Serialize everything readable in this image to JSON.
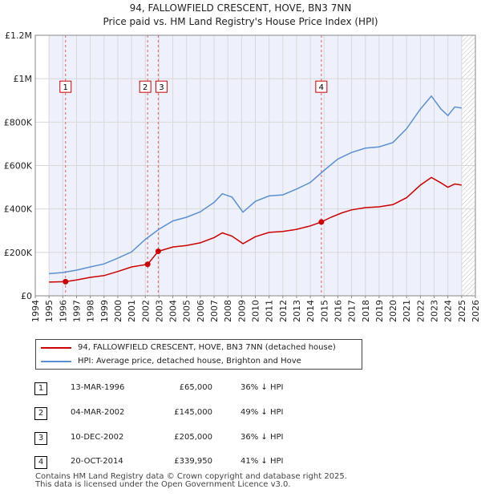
{
  "chart_data": {
    "type": "line",
    "title": "94, FALLOWFIELD CRESCENT, HOVE, BN3 7NN",
    "subtitle": "Price paid vs. HM Land Registry's House Price Index (HPI)",
    "xlim": [
      1994,
      2026
    ],
    "ylim": [
      0,
      1200000
    ],
    "x_ticks": [
      "1994",
      "1995",
      "1996",
      "1997",
      "1998",
      "1999",
      "2000",
      "2001",
      "2002",
      "2003",
      "2004",
      "2005",
      "2006",
      "2007",
      "2008",
      "2009",
      "2010",
      "2011",
      "2012",
      "2013",
      "2014",
      "2015",
      "2016",
      "2017",
      "2018",
      "2019",
      "2020",
      "2021",
      "2022",
      "2023",
      "2024",
      "2025",
      "2026"
    ],
    "y_ticks": [
      {
        "value": 0,
        "label": "£0"
      },
      {
        "value": 200000,
        "label": "£200K"
      },
      {
        "value": 400000,
        "label": "£400K"
      },
      {
        "value": 600000,
        "label": "£600K"
      },
      {
        "value": 800000,
        "label": "£800K"
      },
      {
        "value": 1000000,
        "label": "£1M"
      },
      {
        "value": 1200000,
        "label": "£1.2M"
      }
    ],
    "shaded_period": [
      1995,
      2025
    ],
    "series": [
      {
        "name": "94, FALLOWFIELD CRESCENT, HOVE, BN3 7NN (detached house)",
        "color": "#cc0000",
        "points": [
          [
            1995,
            63000
          ],
          [
            1996.2,
            65000
          ],
          [
            1997,
            73000
          ],
          [
            1998,
            85000
          ],
          [
            1999,
            93000
          ],
          [
            2000,
            112000
          ],
          [
            2001,
            133000
          ],
          [
            2002.17,
            145000
          ],
          [
            2002.94,
            205000
          ],
          [
            2004,
            225000
          ],
          [
            2005,
            232000
          ],
          [
            2006,
            244000
          ],
          [
            2007,
            268000
          ],
          [
            2007.6,
            290000
          ],
          [
            2008.3,
            275000
          ],
          [
            2009.1,
            240000
          ],
          [
            2010,
            272000
          ],
          [
            2011,
            292000
          ],
          [
            2012,
            296000
          ],
          [
            2013,
            306000
          ],
          [
            2014,
            322000
          ],
          [
            2014.8,
            339950
          ],
          [
            2015.5,
            362000
          ],
          [
            2016.3,
            382000
          ],
          [
            2017,
            396000
          ],
          [
            2018,
            406000
          ],
          [
            2019,
            410000
          ],
          [
            2020,
            420000
          ],
          [
            2021,
            452000
          ],
          [
            2022,
            510000
          ],
          [
            2022.8,
            545000
          ],
          [
            2023.5,
            520000
          ],
          [
            2024,
            500000
          ],
          [
            2024.5,
            515000
          ],
          [
            2025,
            510000
          ]
        ]
      },
      {
        "name": "HPI: Average price, detached house, Brighton and Hove",
        "color": "#5b8fd4",
        "points": [
          [
            1995,
            102000
          ],
          [
            1996,
            107000
          ],
          [
            1997,
            118000
          ],
          [
            1998,
            133000
          ],
          [
            1999,
            147000
          ],
          [
            2000,
            173000
          ],
          [
            2001,
            202000
          ],
          [
            2002,
            260000
          ],
          [
            2003,
            307000
          ],
          [
            2004,
            345000
          ],
          [
            2005,
            362000
          ],
          [
            2006,
            387000
          ],
          [
            2007,
            430000
          ],
          [
            2007.6,
            470000
          ],
          [
            2008.3,
            455000
          ],
          [
            2009.1,
            385000
          ],
          [
            2010,
            435000
          ],
          [
            2011,
            460000
          ],
          [
            2012,
            465000
          ],
          [
            2013,
            492000
          ],
          [
            2014,
            522000
          ],
          [
            2015,
            578000
          ],
          [
            2016,
            630000
          ],
          [
            2017,
            660000
          ],
          [
            2018,
            680000
          ],
          [
            2019,
            686000
          ],
          [
            2020,
            706000
          ],
          [
            2021,
            770000
          ],
          [
            2022,
            860000
          ],
          [
            2022.8,
            920000
          ],
          [
            2023.5,
            860000
          ],
          [
            2024,
            830000
          ],
          [
            2024.5,
            870000
          ],
          [
            2025,
            865000
          ]
        ]
      }
    ],
    "sales": [
      {
        "label": "1",
        "x": 1996.2,
        "value": 65000
      },
      {
        "label": "2",
        "x": 2002.17,
        "value": 145000
      },
      {
        "label": "3",
        "x": 2002.94,
        "value": 205000
      },
      {
        "label": "4",
        "x": 2014.8,
        "value": 339950
      }
    ]
  },
  "legend": {
    "property_label": "94, FALLOWFIELD CRESCENT, HOVE, BN3 7NN (detached house)",
    "hpi_label": "HPI: Average price, detached house, Brighton and Hove"
  },
  "transactions": [
    {
      "num": "1",
      "date": "13-MAR-1996",
      "price": "£65,000",
      "hpi": "36% ↓ HPI"
    },
    {
      "num": "2",
      "date": "04-MAR-2002",
      "price": "£145,000",
      "hpi": "49% ↓ HPI"
    },
    {
      "num": "3",
      "date": "10-DEC-2002",
      "price": "£205,000",
      "hpi": "36% ↓ HPI"
    },
    {
      "num": "4",
      "date": "20-OCT-2014",
      "price": "£339,950",
      "hpi": "41% ↓ HPI"
    }
  ],
  "footer": {
    "line1": "Contains HM Land Registry data © Crown copyright and database right 2025.",
    "line2": "This data is licensed under the Open Government Licence v3.0."
  }
}
